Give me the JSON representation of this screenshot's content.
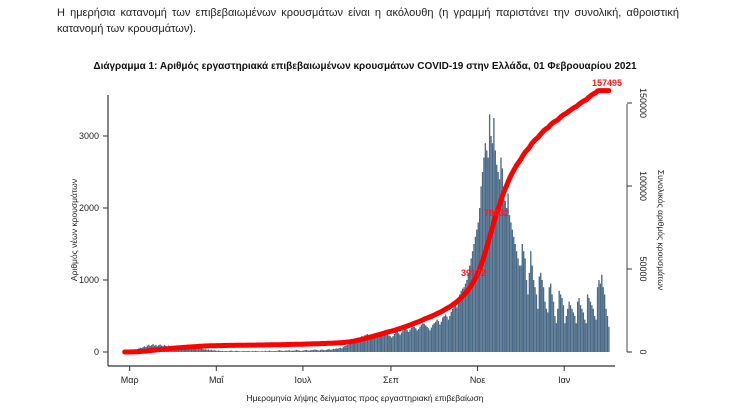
{
  "intro_text": "Η ημερήσια κατανομή των επιβεβαιωμένων κρουσμάτων είναι η ακόλουθη (η γραμμή παριστάνει την συνολική, αθροιστική κατανομή των κρουσμάτων).",
  "chart_data": {
    "type": "bar",
    "title": "Διάγραμμα 1: Αριθμός εργαστηριακά επιβεβαιωμένων κρουσμάτων COVID-19 στην Ελλάδα, 01 Φεβρουαρίου 2021",
    "xlabel": "Ημερομηνία λήψης δείγματος προς εργαστηριακή επιβεβαίωση",
    "ylabel": "Αριθμός νέων κρουσμάτων",
    "y2label": "Συνολικός αριθμός κρουσμάτων",
    "ylim": [
      0,
      3500
    ],
    "y2lim": [
      0,
      160000
    ],
    "yticks": [
      "0",
      "1000",
      "2000",
      "3000"
    ],
    "y2ticks": [
      "0",
      "50000",
      "100000",
      "150000"
    ],
    "xticks": [
      "Μαρ",
      "Μαΐ",
      "Ιουλ",
      "Σεπ",
      "Νοε",
      "Ιαν"
    ],
    "start_date": "2020-02-26",
    "bar_color": "#4a6a87",
    "line_color": "#ff0000",
    "series": [
      {
        "type": "bar",
        "axis": "left",
        "values_by_month": {
          "2020-02": [
            2,
            3,
            5,
            10
          ],
          "2020-03": [
            15,
            20,
            25,
            30,
            35,
            40,
            50,
            60,
            55,
            70,
            80,
            70,
            90,
            100,
            85,
            95,
            110,
            90,
            100,
            80,
            95,
            105,
            90,
            80,
            100,
            85,
            75,
            90,
            70,
            60,
            80
          ],
          "2020-04": [
            70,
            60,
            80,
            90,
            65,
            55,
            70,
            60,
            50,
            75,
            60,
            50,
            45,
            55,
            65,
            50,
            40,
            60,
            110,
            55,
            45,
            35,
            40,
            30,
            35,
            25,
            30,
            20,
            25,
            20
          ],
          "2020-05": [
            15,
            20,
            18,
            12,
            15,
            10,
            14,
            12,
            10,
            15,
            20,
            12,
            10,
            15,
            18,
            12,
            10,
            8,
            12,
            15,
            10,
            12,
            14,
            10,
            8,
            12,
            10,
            15,
            12,
            10,
            8
          ],
          "2020-06": [
            10,
            12,
            8,
            15,
            10,
            12,
            20,
            14,
            10,
            12,
            15,
            10,
            18,
            25,
            20,
            15,
            12,
            20,
            18,
            22,
            25,
            15,
            20,
            18,
            22,
            30,
            25,
            20,
            15,
            18
          ],
          "2020-07": [
            20,
            25,
            30,
            22,
            18,
            25,
            30,
            28,
            35,
            30,
            25,
            20,
            30,
            35,
            28,
            25,
            30,
            35,
            40,
            30,
            35,
            45,
            40,
            50,
            45,
            55,
            60,
            50,
            70,
            80,
            90
          ],
          "2020-08": [
            100,
            110,
            120,
            130,
            150,
            160,
            170,
            180,
            190,
            200,
            220,
            210,
            230,
            240,
            250,
            220,
            200,
            230,
            250,
            260,
            240,
            250,
            230,
            220,
            260,
            280,
            270,
            250,
            240,
            230,
            220
          ],
          "2020-09": [
            200,
            220,
            250,
            280,
            300,
            260,
            240,
            270,
            300,
            320,
            330,
            300,
            280,
            310,
            340,
            360,
            350,
            330,
            300,
            320,
            350,
            380,
            400,
            390,
            370,
            350,
            330,
            300,
            340,
            380
          ],
          "2020-10": [
            400,
            420,
            450,
            430,
            380,
            420,
            480,
            500,
            520,
            490,
            450,
            500,
            560,
            600,
            640,
            650,
            620,
            700,
            800,
            850,
            880,
            900,
            950,
            1000,
            1100,
            1200,
            1300,
            1400,
            1500,
            1600,
            1700
          ],
          "2020-11": [
            1800,
            2000,
            2300,
            2500,
            2700,
            2900,
            2800,
            2700,
            3300,
            3000,
            2900,
            3250,
            2800,
            2600,
            2500,
            2400,
            2700,
            2550,
            2300,
            2100,
            2000,
            2200,
            1900,
            1800,
            1700,
            1600,
            1500,
            1400,
            1300,
            1200
          ],
          "2020-12": [
            1200,
            1500,
            1400,
            1300,
            1000,
            800,
            1100,
            1400,
            1200,
            1000,
            900,
            800,
            600,
            1050,
            1100,
            1000,
            900,
            700,
            600,
            550,
            900,
            950,
            800,
            700,
            500,
            400,
            600,
            850,
            800,
            750,
            650
          ],
          "2021-01": [
            400,
            500,
            600,
            700,
            650,
            600,
            550,
            500,
            400,
            700,
            750,
            650,
            600,
            550,
            450,
            400,
            800,
            750,
            700,
            650,
            600,
            500,
            450,
            900,
            1000,
            950,
            1073,
            900,
            800,
            600,
            500
          ],
          "2021-02": [
            350
          ]
        }
      },
      {
        "type": "line",
        "axis": "right",
        "cumulative": true
      }
    ],
    "annotations": [
      "39172",
      "79032",
      "157495"
    ],
    "grid": false
  }
}
